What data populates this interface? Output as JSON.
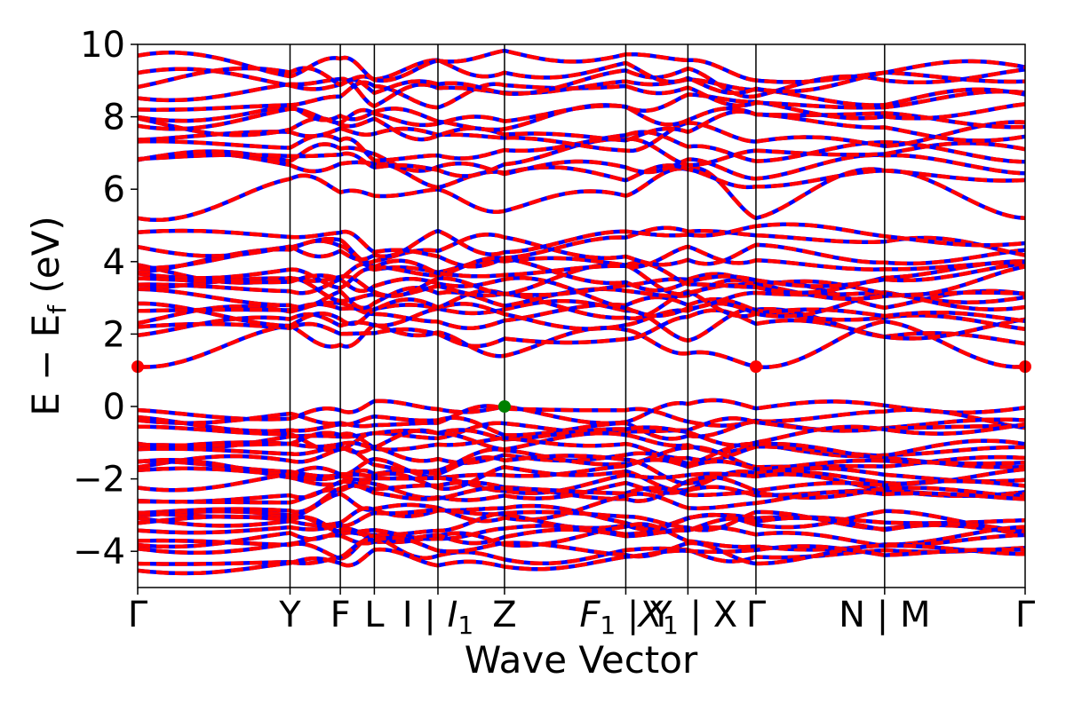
{
  "chart_data": {
    "type": "line",
    "xlabel": "Wave Vector",
    "ylabel": "E − E_f (eV)",
    "ylim": [
      -5,
      10
    ],
    "yticks": [
      -4,
      -2,
      0,
      2,
      4,
      6,
      8,
      10
    ],
    "ytick_labels": [
      "−4",
      "−2",
      "0",
      "2",
      "4",
      "6",
      "8",
      "10"
    ],
    "x_range": [
      0,
      6.0
    ],
    "kpath": [
      {
        "label": "Γ",
        "x": 0.0
      },
      {
        "label": "Y",
        "x": 1.03
      },
      {
        "label": "F",
        "x": 1.37
      },
      {
        "label": "L",
        "x": 1.6
      },
      {
        "label": "I | I₁",
        "x": 2.03
      },
      {
        "label": "Z",
        "x": 2.48
      },
      {
        "label": "F₁ | Y",
        "x": 3.3
      },
      {
        "label": "X₁ | X",
        "x": 3.72
      },
      {
        "label": "Γ",
        "x": 4.18
      },
      {
        "label": "N | M",
        "x": 5.05
      },
      {
        "label": "Γ",
        "x": 6.0
      }
    ],
    "series": [
      {
        "color": "#0000ff",
        "style": "solid"
      },
      {
        "color": "#ff0000",
        "style": "dashed"
      }
    ],
    "valence_band_max": {
      "x": 2.48,
      "y": 0.0,
      "color": "#008000"
    },
    "conduction_band_min": [
      {
        "x": 0.0,
        "y": 1.1,
        "color": "#ff0000"
      },
      {
        "x": 4.18,
        "y": 1.1,
        "color": "#ff0000"
      },
      {
        "x": 6.0,
        "y": 1.1,
        "color": "#ff0000"
      }
    ],
    "grid": false,
    "legend": "none"
  }
}
